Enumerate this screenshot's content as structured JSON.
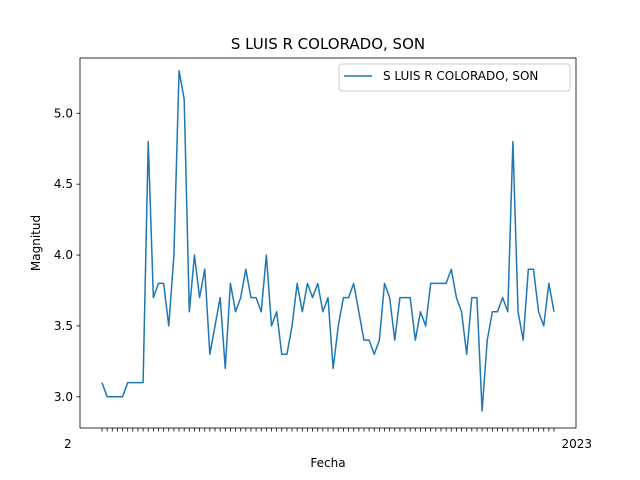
{
  "chart_data": {
    "type": "line",
    "title": "S LUIS R COLORADO, SON",
    "xlabel": "Fecha",
    "ylabel": "Magnitud",
    "ylim": [
      2.78,
      5.39
    ],
    "yticks": [
      "3.0",
      "3.5",
      "4.0",
      "4.5",
      "5.0"
    ],
    "ytick_values": [
      3.0,
      3.5,
      4.0,
      4.5,
      5.0
    ],
    "xtick_text_first": "2",
    "xtick_text_last": "2023",
    "legend": {
      "location": "top-right",
      "entries": [
        "S LUIS R COLORADO, SON"
      ]
    },
    "grid": false,
    "series": [
      {
        "name": "S LUIS R COLORADO, SON",
        "color": "#1f77b4",
        "values": [
          3.1,
          3.0,
          3.0,
          3.0,
          3.0,
          3.1,
          3.1,
          3.1,
          3.1,
          4.8,
          3.7,
          3.8,
          3.8,
          3.5,
          4.0,
          5.3,
          5.1,
          3.6,
          4.0,
          3.7,
          3.9,
          3.3,
          3.5,
          3.7,
          3.2,
          3.8,
          3.6,
          3.7,
          3.9,
          3.7,
          3.7,
          3.6,
          4.0,
          3.5,
          3.6,
          3.3,
          3.3,
          3.5,
          3.8,
          3.6,
          3.8,
          3.7,
          3.8,
          3.6,
          3.7,
          3.2,
          3.5,
          3.7,
          3.7,
          3.8,
          3.6,
          3.4,
          3.4,
          3.3,
          3.4,
          3.8,
          3.7,
          3.4,
          3.7,
          3.7,
          3.7,
          3.4,
          3.6,
          3.5,
          3.8,
          3.8,
          3.8,
          3.8,
          3.9,
          3.7,
          3.6,
          3.3,
          3.7,
          3.7,
          2.9,
          3.4,
          3.6,
          3.6,
          3.7,
          3.6,
          4.8,
          3.6,
          3.4,
          3.9,
          3.9,
          3.6,
          3.5,
          3.8,
          3.6
        ]
      }
    ]
  }
}
